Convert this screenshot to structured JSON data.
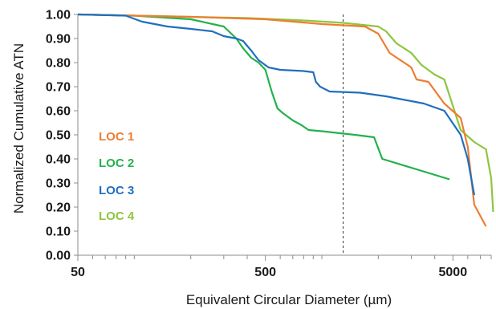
{
  "chart_data": {
    "type": "line",
    "xlabel": "Equivalent Circular Diameter (µm)",
    "ylabel": "Normalized Cumulative ATN",
    "x_scale": "log",
    "xlim": [
      50,
      8000
    ],
    "ylim": [
      0,
      1
    ],
    "x_ticks": [
      "50",
      "500",
      "5000"
    ],
    "x_tick_values": [
      50,
      500,
      5000
    ],
    "y_ticks": [
      "0.00",
      "0.10",
      "0.20",
      "0.30",
      "0.40",
      "0.50",
      "0.60",
      "0.70",
      "0.80",
      "0.90",
      "1.00"
    ],
    "y_tick_values": [
      0,
      0.1,
      0.2,
      0.3,
      0.4,
      0.5,
      0.6,
      0.7,
      0.8,
      0.9,
      1.0
    ],
    "reference_line": {
      "x": 1300,
      "style": "dashed"
    },
    "legend_position": "left-inside",
    "series": [
      {
        "name": "LOC 1",
        "color": "#ee7d31",
        "points": [
          [
            50,
            1.0
          ],
          [
            100,
            0.995
          ],
          [
            200,
            0.99
          ],
          [
            500,
            0.98
          ],
          [
            1000,
            0.96
          ],
          [
            1300,
            0.955
          ],
          [
            1700,
            0.95
          ],
          [
            2000,
            0.92
          ],
          [
            2300,
            0.84
          ],
          [
            3000,
            0.78
          ],
          [
            3200,
            0.73
          ],
          [
            3700,
            0.72
          ],
          [
            4500,
            0.63
          ],
          [
            5500,
            0.57
          ],
          [
            6000,
            0.45
          ],
          [
            6500,
            0.21
          ],
          [
            7500,
            0.12
          ]
        ]
      },
      {
        "name": "LOC 2",
        "color": "#22b24c",
        "points": [
          [
            50,
            1.0
          ],
          [
            100,
            0.995
          ],
          [
            200,
            0.98
          ],
          [
            300,
            0.95
          ],
          [
            350,
            0.9
          ],
          [
            380,
            0.86
          ],
          [
            420,
            0.82
          ],
          [
            460,
            0.8
          ],
          [
            500,
            0.77
          ],
          [
            540,
            0.68
          ],
          [
            580,
            0.61
          ],
          [
            620,
            0.59
          ],
          [
            700,
            0.56
          ],
          [
            780,
            0.54
          ],
          [
            850,
            0.52
          ],
          [
            1000,
            0.515
          ],
          [
            1500,
            0.5
          ],
          [
            1900,
            0.49
          ],
          [
            2100,
            0.4
          ],
          [
            4800,
            0.315
          ]
        ]
      },
      {
        "name": "LOC 3",
        "color": "#1f6fc0",
        "points": [
          [
            50,
            1.0
          ],
          [
            90,
            0.995
          ],
          [
            110,
            0.97
          ],
          [
            150,
            0.95
          ],
          [
            200,
            0.94
          ],
          [
            260,
            0.93
          ],
          [
            300,
            0.91
          ],
          [
            350,
            0.9
          ],
          [
            380,
            0.89
          ],
          [
            420,
            0.85
          ],
          [
            460,
            0.81
          ],
          [
            520,
            0.78
          ],
          [
            600,
            0.77
          ],
          [
            800,
            0.765
          ],
          [
            900,
            0.76
          ],
          [
            930,
            0.72
          ],
          [
            980,
            0.7
          ],
          [
            1100,
            0.68
          ],
          [
            1600,
            0.675
          ],
          [
            2200,
            0.66
          ],
          [
            3500,
            0.63
          ],
          [
            4500,
            0.6
          ],
          [
            5500,
            0.5
          ],
          [
            6000,
            0.4
          ],
          [
            6500,
            0.25
          ]
        ]
      },
      {
        "name": "LOC 4",
        "color": "#8dc63f",
        "points": [
          [
            50,
            1.0
          ],
          [
            100,
            0.995
          ],
          [
            200,
            0.99
          ],
          [
            400,
            0.985
          ],
          [
            800,
            0.975
          ],
          [
            1300,
            0.965
          ],
          [
            2000,
            0.95
          ],
          [
            2200,
            0.93
          ],
          [
            2500,
            0.88
          ],
          [
            3000,
            0.84
          ],
          [
            3400,
            0.79
          ],
          [
            4000,
            0.75
          ],
          [
            4500,
            0.73
          ],
          [
            5000,
            0.62
          ],
          [
            5500,
            0.52
          ],
          [
            6500,
            0.47
          ],
          [
            7500,
            0.44
          ],
          [
            8000,
            0.32
          ],
          [
            8200,
            0.18
          ]
        ]
      }
    ]
  }
}
